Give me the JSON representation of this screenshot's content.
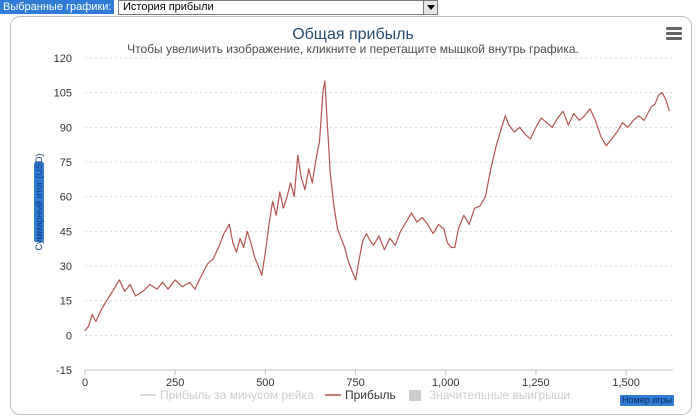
{
  "topbar": {
    "label": "Выбранные графики:",
    "select_value": "История прибыли"
  },
  "menu": {
    "icon": "hamburger-icon"
  },
  "colors": {
    "line": "#b5544f",
    "grid": "#d7d7d7",
    "hidden_series": "#cccccc",
    "axis_label_bg": "#2f7bd6"
  },
  "chart_data": {
    "type": "line",
    "title": "Общая прибыль",
    "subtitle": "Чтобы увеличить изображение, кликните и перетащите мышкой внутрь графика.",
    "xlabel": "Номер игры",
    "ylabel": "Суммарный итог (USD)",
    "xlim": [
      0,
      1630
    ],
    "ylim": [
      -15,
      120
    ],
    "yticks": [
      120,
      105,
      90,
      75,
      60,
      45,
      30,
      15,
      0,
      -15
    ],
    "xticks": [
      {
        "value": 0,
        "label": "0"
      },
      {
        "value": 250,
        "label": "250"
      },
      {
        "value": 500,
        "label": "500"
      },
      {
        "value": 750,
        "label": "750"
      },
      {
        "value": 1000,
        "label": "1,000"
      },
      {
        "value": 1250,
        "label": "1,250"
      },
      {
        "value": 1500,
        "label": "1,500"
      }
    ],
    "legend": [
      {
        "name": "Прибыль за минусом рейка",
        "visible": false
      },
      {
        "name": "Прибыль",
        "visible": true
      },
      {
        "name": "Значительные выигрыши",
        "visible": false,
        "marker": "square"
      }
    ],
    "series": [
      {
        "name": "Прибыль",
        "x": [
          0,
          10,
          20,
          30,
          45,
          60,
          80,
          95,
          110,
          125,
          140,
          160,
          180,
          200,
          215,
          230,
          250,
          270,
          290,
          305,
          320,
          340,
          355,
          370,
          385,
          400,
          410,
          420,
          430,
          440,
          450,
          460,
          470,
          480,
          490,
          500,
          510,
          520,
          530,
          540,
          550,
          560,
          570,
          580,
          590,
          600,
          610,
          620,
          630,
          640,
          650,
          660,
          665,
          670,
          680,
          690,
          700,
          710,
          720,
          730,
          740,
          750,
          760,
          770,
          780,
          790,
          800,
          815,
          830,
          845,
          860,
          875,
          890,
          905,
          920,
          935,
          950,
          965,
          980,
          995,
          1005,
          1015,
          1025,
          1035,
          1050,
          1065,
          1080,
          1095,
          1110,
          1125,
          1140,
          1155,
          1165,
          1175,
          1190,
          1205,
          1220,
          1235,
          1250,
          1265,
          1280,
          1295,
          1310,
          1325,
          1340,
          1355,
          1370,
          1385,
          1400,
          1415,
          1430,
          1445,
          1460,
          1475,
          1490,
          1505,
          1520,
          1535,
          1550,
          1560,
          1570,
          1580,
          1590,
          1600,
          1610,
          1620
        ],
        "values": [
          2,
          4,
          9,
          6,
          11,
          15,
          20,
          24,
          19,
          22,
          17,
          19,
          22,
          20,
          23,
          20,
          24,
          21,
          23,
          20,
          25,
          31,
          33,
          38,
          44,
          48,
          40,
          36,
          42,
          38,
          45,
          40,
          34,
          30,
          26,
          36,
          48,
          58,
          52,
          62,
          55,
          60,
          66,
          60,
          78,
          68,
          63,
          72,
          66,
          76,
          84,
          106,
          110,
          96,
          70,
          56,
          46,
          42,
          38,
          32,
          28,
          24,
          33,
          41,
          44,
          41,
          39,
          43,
          37,
          42,
          39,
          45,
          49,
          53,
          49,
          51,
          48,
          44,
          48,
          46,
          40,
          38,
          38,
          46,
          52,
          48,
          55,
          56,
          60,
          72,
          82,
          90,
          95,
          91,
          88,
          90,
          87,
          85,
          90,
          94,
          92,
          90,
          94,
          97,
          91,
          96,
          93,
          95,
          98,
          93,
          86,
          82,
          85,
          88,
          92,
          90,
          93,
          95,
          93,
          96,
          99,
          100,
          104,
          105,
          102,
          97
        ]
      }
    ]
  }
}
